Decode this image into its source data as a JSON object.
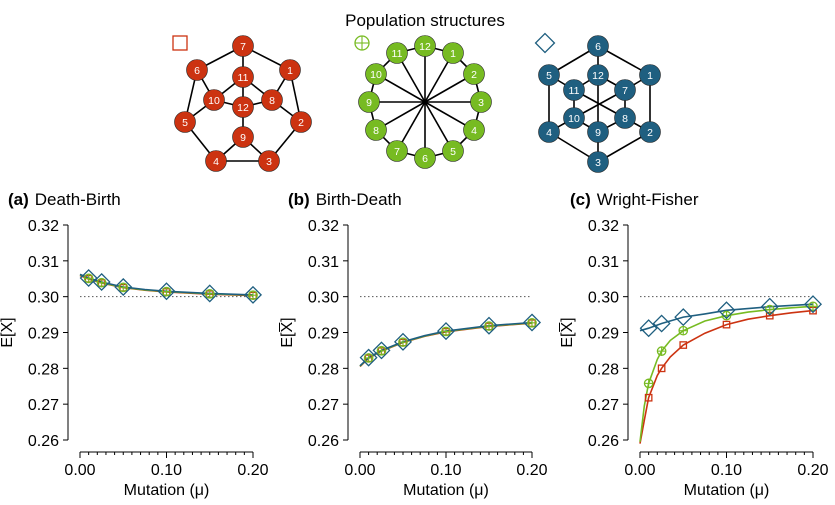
{
  "figure": {
    "title": "Population structures"
  },
  "networks": [
    {
      "symbol": "square",
      "color": "#cc3311",
      "nodes": [
        "1",
        "2",
        "3",
        "4",
        "5",
        "6",
        "7",
        "8",
        "9",
        "10",
        "11",
        "12"
      ]
    },
    {
      "symbol": "circle-plus",
      "color": "#77bb22",
      "nodes": [
        "1",
        "2",
        "3",
        "4",
        "5",
        "6",
        "7",
        "8",
        "9",
        "10",
        "11",
        "12"
      ]
    },
    {
      "symbol": "diamond",
      "color": "#1f5f80",
      "nodes": [
        "1",
        "2",
        "3",
        "4",
        "5",
        "6",
        "7",
        "8",
        "9",
        "10",
        "11",
        "12"
      ]
    }
  ],
  "chart_data": [
    {
      "type": "line",
      "panel": "(a)",
      "title": "Death-Birth",
      "xlabel": "Mutation (μ)",
      "ylabel": "E[X̅]",
      "xlim": [
        0,
        0.2
      ],
      "ylim": [
        0.26,
        0.32
      ],
      "xticks": [
        "0.00",
        "0.10",
        "0.20"
      ],
      "yticks": [
        "0.32",
        "0.31",
        "0.30",
        "0.29",
        "0.28",
        "0.27",
        "0.26"
      ],
      "reference_line": 0.3,
      "x": [
        0.01,
        0.025,
        0.05,
        0.1,
        0.15,
        0.2
      ],
      "series": [
        {
          "marker": "square",
          "color": "#cc3311",
          "curve": [
            [
              0,
              0.3059
            ],
            [
              0.01,
              0.3049
            ],
            [
              0.025,
              0.3038
            ],
            [
              0.05,
              0.3025
            ],
            [
              0.075,
              0.3018
            ],
            [
              0.1,
              0.3013
            ],
            [
              0.15,
              0.3007
            ],
            [
              0.2,
              0.3003
            ]
          ],
          "values": [
            0.305,
            0.3038,
            0.3025,
            0.3013,
            0.3007,
            0.3003
          ]
        },
        {
          "marker": "circle-plus",
          "color": "#77bb22",
          "curve": [
            [
              0,
              0.3061
            ],
            [
              0.01,
              0.305
            ],
            [
              0.025,
              0.3039
            ],
            [
              0.05,
              0.3026
            ],
            [
              0.075,
              0.3019
            ],
            [
              0.1,
              0.3014
            ],
            [
              0.15,
              0.3008
            ],
            [
              0.2,
              0.3004
            ]
          ],
          "values": [
            0.3051,
            0.3039,
            0.3026,
            0.3014,
            0.3008,
            0.3004
          ]
        },
        {
          "marker": "diamond",
          "color": "#1f5f80",
          "curve": [
            [
              0,
              0.3062
            ],
            [
              0.01,
              0.3052
            ],
            [
              0.025,
              0.3041
            ],
            [
              0.05,
              0.3027
            ],
            [
              0.075,
              0.302
            ],
            [
              0.1,
              0.3015
            ],
            [
              0.15,
              0.3009
            ],
            [
              0.2,
              0.3005
            ]
          ],
          "values": [
            0.3052,
            0.3041,
            0.3027,
            0.3015,
            0.3009,
            0.3005
          ]
        }
      ]
    },
    {
      "type": "line",
      "panel": "(b)",
      "title": "Birth-Death",
      "xlabel": "Mutation (μ)",
      "ylabel": "E[X̅]",
      "xlim": [
        0,
        0.2
      ],
      "ylim": [
        0.26,
        0.32
      ],
      "xticks": [
        "0.00",
        "0.10",
        "0.20"
      ],
      "yticks": [
        "0.32",
        "0.31",
        "0.30",
        "0.29",
        "0.28",
        "0.27",
        "0.26"
      ],
      "reference_line": 0.3,
      "x": [
        0.01,
        0.025,
        0.05,
        0.1,
        0.15,
        0.2
      ],
      "series": [
        {
          "marker": "square",
          "color": "#cc3311",
          "curve": [
            [
              0,
              0.2805
            ],
            [
              0.01,
              0.2828
            ],
            [
              0.025,
              0.2848
            ],
            [
              0.05,
              0.2872
            ],
            [
              0.075,
              0.2889
            ],
            [
              0.1,
              0.2902
            ],
            [
              0.15,
              0.2917
            ],
            [
              0.2,
              0.2926
            ]
          ],
          "values": [
            0.2828,
            0.2848,
            0.2872,
            0.2902,
            0.2917,
            0.2926
          ]
        },
        {
          "marker": "circle-plus",
          "color": "#77bb22",
          "curve": [
            [
              0,
              0.2806
            ],
            [
              0.01,
              0.2829
            ],
            [
              0.025,
              0.2849
            ],
            [
              0.05,
              0.2873
            ],
            [
              0.075,
              0.289
            ],
            [
              0.1,
              0.2903
            ],
            [
              0.15,
              0.2918
            ],
            [
              0.2,
              0.2927
            ]
          ],
          "values": [
            0.2829,
            0.2849,
            0.2873,
            0.2903,
            0.2918,
            0.2927
          ]
        },
        {
          "marker": "diamond",
          "color": "#1f5f80",
          "curve": [
            [
              0,
              0.2807
            ],
            [
              0.01,
              0.283
            ],
            [
              0.025,
              0.285
            ],
            [
              0.05,
              0.2874
            ],
            [
              0.075,
              0.2891
            ],
            [
              0.1,
              0.2904
            ],
            [
              0.15,
              0.2919
            ],
            [
              0.2,
              0.2928
            ]
          ],
          "values": [
            0.283,
            0.285,
            0.2874,
            0.2904,
            0.2919,
            0.2928
          ]
        }
      ]
    },
    {
      "type": "line",
      "panel": "(c)",
      "title": "Wright-Fisher",
      "xlabel": "Mutation (μ)",
      "ylabel": "E[X̅]",
      "xlim": [
        0,
        0.2
      ],
      "ylim": [
        0.26,
        0.32
      ],
      "xticks": [
        "0.00",
        "0.10",
        "0.20"
      ],
      "yticks": [
        "0.32",
        "0.31",
        "0.30",
        "0.29",
        "0.28",
        "0.27",
        "0.26"
      ],
      "reference_line": 0.3,
      "x": [
        0.01,
        0.025,
        0.05,
        0.1,
        0.15,
        0.2
      ],
      "series": [
        {
          "marker": "square",
          "color": "#cc3311",
          "curve": [
            [
              0,
              0.259
            ],
            [
              0.005,
              0.2655
            ],
            [
              0.01,
              0.2718
            ],
            [
              0.02,
              0.278
            ],
            [
              0.025,
              0.28
            ],
            [
              0.035,
              0.2832
            ],
            [
              0.05,
              0.2865
            ],
            [
              0.075,
              0.2898
            ],
            [
              0.1,
              0.2922
            ],
            [
              0.125,
              0.2937
            ],
            [
              0.15,
              0.2947
            ],
            [
              0.175,
              0.2955
            ],
            [
              0.2,
              0.2961
            ]
          ],
          "values": [
            0.2718,
            0.28,
            0.2865,
            0.2922,
            0.2947,
            0.2961
          ]
        },
        {
          "marker": "circle-plus",
          "color": "#77bb22",
          "curve": [
            [
              0,
              0.2595
            ],
            [
              0.005,
              0.2695
            ],
            [
              0.01,
              0.2758
            ],
            [
              0.02,
              0.2825
            ],
            [
              0.025,
              0.2848
            ],
            [
              0.035,
              0.2878
            ],
            [
              0.05,
              0.2905
            ],
            [
              0.075,
              0.2932
            ],
            [
              0.1,
              0.2947
            ],
            [
              0.125,
              0.2957
            ],
            [
              0.15,
              0.2964
            ],
            [
              0.175,
              0.2969
            ],
            [
              0.2,
              0.2973
            ]
          ],
          "values": [
            0.2758,
            0.2848,
            0.2905,
            0.2947,
            0.2964,
            0.2973
          ]
        },
        {
          "marker": "diamond",
          "color": "#1f5f80",
          "curve": [
            [
              0,
              0.2905
            ],
            [
              0.01,
              0.2912
            ],
            [
              0.025,
              0.2925
            ],
            [
              0.05,
              0.2943
            ],
            [
              0.075,
              0.2952
            ],
            [
              0.1,
              0.2962
            ],
            [
              0.15,
              0.2972
            ],
            [
              0.2,
              0.2979
            ]
          ],
          "values": [
            0.2912,
            0.2925,
            0.2943,
            0.2962,
            0.2972,
            0.2979
          ]
        }
      ]
    }
  ]
}
